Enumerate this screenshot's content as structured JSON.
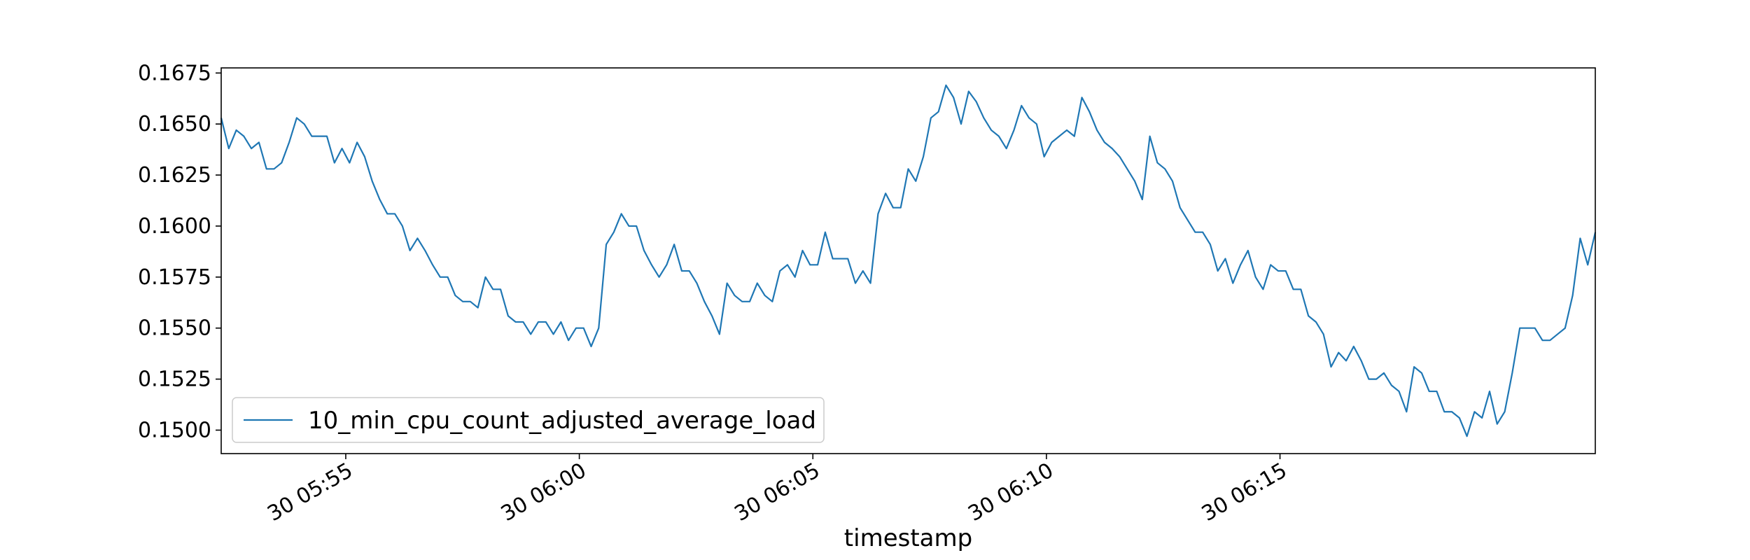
{
  "chart_data": {
    "type": "line",
    "title": "",
    "xlabel": "timestamp",
    "ylabel": "",
    "x_start": "2023-06-30T05:52:20",
    "x_end": "2023-06-30T06:21:45",
    "xlim": [
      "2023-06-30T05:52:20",
      "2023-06-30T06:21:45"
    ],
    "ylim": [
      0.14885,
      0.16775
    ],
    "x_ticks": [
      {
        "value": "2023-06-30T05:55:00",
        "label": "30 05:55"
      },
      {
        "value": "2023-06-30T06:00:00",
        "label": "30 06:00"
      },
      {
        "value": "2023-06-30T06:05:00",
        "label": "30 06:05"
      },
      {
        "value": "2023-06-30T06:10:00",
        "label": "30 06:10"
      },
      {
        "value": "2023-06-30T06:15:00",
        "label": "30 06:15"
      }
    ],
    "y_ticks": [
      {
        "value": 0.15,
        "label": "0.1500"
      },
      {
        "value": 0.1525,
        "label": "0.1525"
      },
      {
        "value": 0.155,
        "label": "0.1550"
      },
      {
        "value": 0.1575,
        "label": "0.1575"
      },
      {
        "value": 0.16,
        "label": "0.1600"
      },
      {
        "value": 0.1625,
        "label": "0.1625"
      },
      {
        "value": 0.165,
        "label": "0.1650"
      },
      {
        "value": 0.1675,
        "label": "0.1675"
      }
    ],
    "grid": false,
    "legend": {
      "position": "lower-left"
    },
    "series": [
      {
        "name": "10_min_cpu_count_adjusted_average_load",
        "color": "#1f77b4",
        "values": [
          0.1653,
          0.1638,
          0.1647,
          0.1644,
          0.1638,
          0.1641,
          0.1628,
          0.1628,
          0.1631,
          0.1641,
          0.1653,
          0.165,
          0.1644,
          0.1644,
          0.1644,
          0.1631,
          0.1638,
          0.1631,
          0.1641,
          0.1634,
          0.1622,
          0.1613,
          0.1606,
          0.1606,
          0.16,
          0.1588,
          0.1594,
          0.1588,
          0.1581,
          0.1575,
          0.1575,
          0.1566,
          0.1563,
          0.1563,
          0.156,
          0.1575,
          0.1569,
          0.1569,
          0.1556,
          0.1553,
          0.1553,
          0.1547,
          0.1553,
          0.1553,
          0.1547,
          0.1553,
          0.1544,
          0.155,
          0.155,
          0.1541,
          0.155,
          0.1591,
          0.1597,
          0.1606,
          0.16,
          0.16,
          0.1588,
          0.1581,
          0.1575,
          0.1581,
          0.1591,
          0.1578,
          0.1578,
          0.1572,
          0.1563,
          0.1556,
          0.1547,
          0.1572,
          0.1566,
          0.1563,
          0.1563,
          0.1572,
          0.1566,
          0.1563,
          0.1578,
          0.1581,
          0.1575,
          0.1588,
          0.1581,
          0.1581,
          0.1597,
          0.1584,
          0.1584,
          0.1584,
          0.1572,
          0.1578,
          0.1572,
          0.1606,
          0.1616,
          0.1609,
          0.1609,
          0.1628,
          0.1622,
          0.1634,
          0.1653,
          0.1656,
          0.1669,
          0.1663,
          0.165,
          0.1666,
          0.1661,
          0.1653,
          0.1647,
          0.1644,
          0.1638,
          0.1647,
          0.1659,
          0.1653,
          0.165,
          0.1634,
          0.1641,
          0.1644,
          0.1647,
          0.1644,
          0.1663,
          0.1656,
          0.1647,
          0.1641,
          0.1638,
          0.1634,
          0.1628,
          0.1622,
          0.1613,
          0.1644,
          0.1631,
          0.1628,
          0.1622,
          0.1609,
          0.1603,
          0.1597,
          0.1597,
          0.1591,
          0.1578,
          0.1584,
          0.1572,
          0.1581,
          0.1588,
          0.1575,
          0.1569,
          0.1581,
          0.1578,
          0.1578,
          0.1569,
          0.1569,
          0.1556,
          0.1553,
          0.1547,
          0.1531,
          0.1538,
          0.1534,
          0.1541,
          0.1534,
          0.1525,
          0.1525,
          0.1528,
          0.1522,
          0.1519,
          0.1509,
          0.1531,
          0.1528,
          0.1519,
          0.1519,
          0.1509,
          0.1509,
          0.1506,
          0.1497,
          0.1509,
          0.1506,
          0.1519,
          0.1503,
          0.1509,
          0.1528,
          0.155,
          0.155,
          0.155,
          0.1544,
          0.1544,
          0.1547,
          0.155,
          0.1566,
          0.1594,
          0.1581,
          0.1597
        ]
      }
    ]
  }
}
